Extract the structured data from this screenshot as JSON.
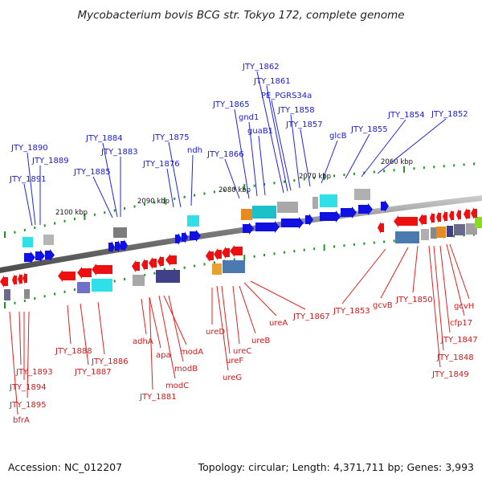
{
  "title": "Mycobacterium bovis BCG str. Tokyo 172, complete genome",
  "accession": "Accession: NC_012207",
  "summary": "Topology: circular; Length: 4,371,711 bp; Genes: 3,993",
  "colors": {
    "forward": "#1010e0",
    "reverse": "#ee1010",
    "top_leader": "#2323dd",
    "bottom_leader": "#e02020",
    "backbone": "#8a8a8a",
    "minor_tick": "#1a9a1a"
  },
  "ticks": [
    "2100 kbp",
    "2090 kbp",
    "2080 kbp",
    "2070 kbp",
    "2060 kbp"
  ],
  "top_labels": [
    "JTY_1890",
    "JTY_1889",
    "JTY_1891",
    "JTY_1884",
    "JTY_1883",
    "JTY_1885",
    "JTY_1875",
    "JTY_1876",
    "ndh",
    "JTY_1866",
    "JTY_1865",
    "gnd1",
    "guaB1",
    "JTY_1862",
    "JTY_1861",
    "PE_PGRS34a",
    "JTY_1858",
    "JTY_1857",
    "glcB",
    "JTY_1855",
    "JTY_1854",
    "JTY_1852"
  ],
  "bottom_labels": [
    "JTY_1888",
    "JTY_1887",
    "JTY_1886",
    "JTY_1893",
    "JTY_1894",
    "JTY_1895",
    "bfrA",
    "adhA",
    "apa",
    "modA",
    "modB",
    "modC",
    "JTY_1881",
    "ureD",
    "ureF",
    "ureG",
    "ureC",
    "ureB",
    "ureA",
    "JTY_1867",
    "JTY_1853",
    "gcvB",
    "JTY_1850",
    "gcvH",
    "cfp17",
    "JTY_1847",
    "JTY_1848",
    "JTY_1849"
  ]
}
